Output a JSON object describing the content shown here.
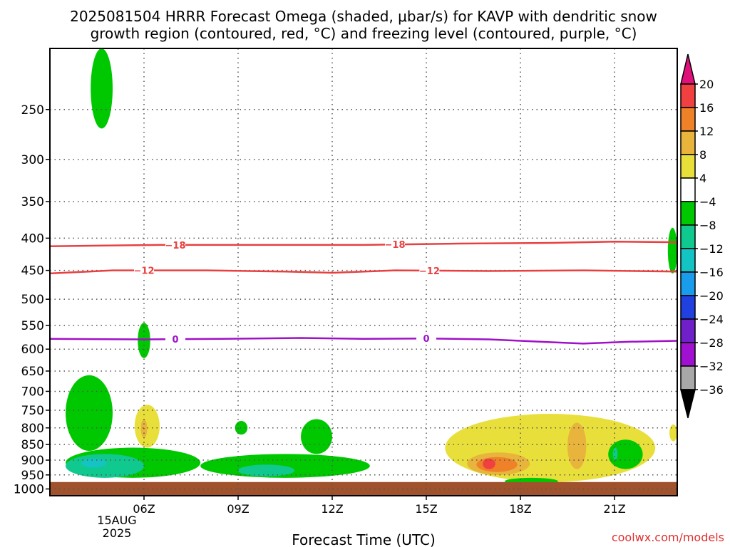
{
  "chart_data": {
    "type": "area",
    "title_line1": "2025081504 HRRR Forecast Omega (shaded, μbar/s) for KAVP with dendritic snow",
    "title_line2": "growth region (contoured, red, °C) and freezing level (contoured, purple, °C)",
    "xlabel": "Forecast Time (UTC)",
    "ylabel": "",
    "credit": "coolwx.com/models",
    "date_label_day": "15AUG",
    "date_label_year": "2025",
    "x_range_hours": [
      3.0,
      23.0
    ],
    "y_range_hPa": [
      200,
      1000
    ],
    "y_scale": "log-pressure (inverted)",
    "grid": true,
    "x_ticks": [
      {
        "hour": 6,
        "label": "06Z"
      },
      {
        "hour": 9,
        "label": "09Z"
      },
      {
        "hour": 12,
        "label": "12Z"
      },
      {
        "hour": 15,
        "label": "15Z"
      },
      {
        "hour": 18,
        "label": "18Z"
      },
      {
        "hour": 21,
        "label": "21Z"
      }
    ],
    "y_ticks": [
      250,
      300,
      350,
      400,
      450,
      500,
      550,
      600,
      650,
      700,
      750,
      800,
      850,
      900,
      950,
      1000
    ],
    "ground_pressure_hPa": 975,
    "colorbar": {
      "levels": [
        -36,
        -32,
        -28,
        -24,
        -20,
        -16,
        -12,
        -8,
        -4,
        4,
        8,
        12,
        16,
        20
      ],
      "labels": [
        "20",
        "16",
        "12",
        "8",
        "4",
        "−4",
        "−8",
        "−12",
        "−16",
        "−20",
        "−24",
        "−28",
        "−32",
        "−36"
      ],
      "colors": {
        "above_20": "#e0107a",
        "16_20": "#f04040",
        "12_16": "#ef8128",
        "8_12": "#e8b43c",
        "4_8": "#e9df3a",
        "m4_4": "#ffffff",
        "m8_m4": "#00c800",
        "m12_m8": "#10c98f",
        "m16_m12": "#14c4c4",
        "m20_m16": "#1a9cec",
        "m24_m20": "#2040e0",
        "m28_m24": "#7020c8",
        "m32_m28": "#a010d0",
        "m36_m32": "#a8a8a8",
        "below_m36": "#000000"
      }
    },
    "contours": [
      {
        "name": "-18",
        "color": "#e84040",
        "points": [
          [
            3.0,
            412
          ],
          [
            6.5,
            410
          ],
          [
            10.0,
            410
          ],
          [
            13.0,
            410
          ],
          [
            16.0,
            408
          ],
          [
            19.0,
            407
          ],
          [
            21.0,
            405
          ],
          [
            23.0,
            406
          ]
        ],
        "labels_at_hours": [
          7.0,
          14.0
        ]
      },
      {
        "name": "-12",
        "color": "#e84040",
        "points": [
          [
            3.0,
            455
          ],
          [
            5.0,
            450
          ],
          [
            8.0,
            450
          ],
          [
            10.5,
            452
          ],
          [
            12.0,
            454
          ],
          [
            14.0,
            450
          ],
          [
            17.0,
            451
          ],
          [
            20.0,
            450
          ],
          [
            23.0,
            452
          ]
        ],
        "labels_at_hours": [
          6.0,
          15.1
        ]
      },
      {
        "name": "0",
        "color": "#a010c8",
        "points": [
          [
            3.0,
            578
          ],
          [
            6.0,
            579
          ],
          [
            8.5,
            578
          ],
          [
            11.0,
            576
          ],
          [
            13.0,
            578
          ],
          [
            15.0,
            577
          ],
          [
            17.0,
            579
          ],
          [
            19.0,
            585
          ],
          [
            20.0,
            588
          ],
          [
            21.5,
            584
          ],
          [
            23.0,
            582
          ]
        ],
        "labels_at_hours": [
          7.0,
          15.0
        ]
      }
    ],
    "shaded_regions": [
      {
        "level": "-8 to -4",
        "color": "#00c800",
        "hours": [
          4.3,
          5.0
        ],
        "pressure_hPa": [
          200,
          268
        ]
      },
      {
        "level": "-8 to -4",
        "color": "#00c800",
        "hours": [
          5.8,
          6.2
        ],
        "pressure_hPa": [
          545,
          620
        ]
      },
      {
        "level": "-8 to -4",
        "color": "#00c800",
        "hours": [
          3.5,
          5.0
        ],
        "pressure_hPa": [
          660,
          870
        ]
      },
      {
        "level": "-8 to -4",
        "color": "#00c800",
        "hours": [
          3.5,
          7.8
        ],
        "pressure_hPa": [
          860,
          960
        ]
      },
      {
        "level": "-12 to -8",
        "color": "#10c98f",
        "hours": [
          3.5,
          6.0
        ],
        "pressure_hPa": [
          880,
          960
        ]
      },
      {
        "level": "-16 to -12",
        "color": "#14c4c4",
        "hours": [
          4.0,
          4.8
        ],
        "pressure_hPa": [
          895,
          925
        ]
      },
      {
        "level": "4 to 8",
        "color": "#e9df3a",
        "hours": [
          5.7,
          6.5
        ],
        "pressure_hPa": [
          735,
          860
        ]
      },
      {
        "level": "8 to 12",
        "color": "#e8b43c",
        "hours": [
          5.9,
          6.1
        ],
        "pressure_hPa": [
          775,
          830
        ]
      },
      {
        "level": "-8 to -4",
        "color": "#00c800",
        "hours": [
          8.9,
          9.3
        ],
        "pressure_hPa": [
          780,
          820
        ]
      },
      {
        "level": "-8 to -4",
        "color": "#00c800",
        "hours": [
          11.0,
          12.0
        ],
        "pressure_hPa": [
          775,
          880
        ]
      },
      {
        "level": "-8 to -4",
        "color": "#00c800",
        "hours": [
          7.8,
          13.2
        ],
        "pressure_hPa": [
          880,
          960
        ]
      },
      {
        "level": "-12 to -8",
        "color": "#10c98f",
        "hours": [
          9.0,
          10.8
        ],
        "pressure_hPa": [
          915,
          955
        ]
      },
      {
        "level": "4 to 8",
        "color": "#e9df3a",
        "hours": [
          15.6,
          22.3
        ],
        "pressure_hPa": [
          760,
          975
        ]
      },
      {
        "level": "8 to 12",
        "color": "#e8b43c",
        "hours": [
          16.3,
          18.3
        ],
        "pressure_hPa": [
          875,
          950
        ]
      },
      {
        "level": "8 to 12",
        "color": "#e8b43c",
        "hours": [
          19.5,
          20.1
        ],
        "pressure_hPa": [
          785,
          930
        ]
      },
      {
        "level": "12 to 16",
        "color": "#ef8128",
        "hours": [
          16.6,
          17.9
        ],
        "pressure_hPa": [
          890,
          940
        ]
      },
      {
        "level": "16 to 20",
        "color": "#f04040",
        "hours": [
          16.8,
          17.2
        ],
        "pressure_hPa": [
          895,
          930
        ]
      },
      {
        "level": "-8 to -4",
        "color": "#00c800",
        "hours": [
          20.8,
          21.9
        ],
        "pressure_hPa": [
          835,
          930
        ]
      },
      {
        "level": "-12 to -8",
        "color": "#10c98f",
        "hours": [
          20.95,
          21.1
        ],
        "pressure_hPa": [
          860,
          900
        ]
      },
      {
        "level": "-8 to -4",
        "color": "#00c800",
        "hours": [
          17.5,
          19.2
        ],
        "pressure_hPa": [
          960,
          985
        ]
      },
      {
        "level": "-8 to -4",
        "color": "#00c800",
        "hours": [
          22.7,
          23.0
        ],
        "pressure_hPa": [
          385,
          455
        ]
      },
      {
        "level": "4 to 8",
        "color": "#e9df3a",
        "hours": [
          22.75,
          23.0
        ],
        "pressure_hPa": [
          790,
          840
        ]
      }
    ]
  }
}
